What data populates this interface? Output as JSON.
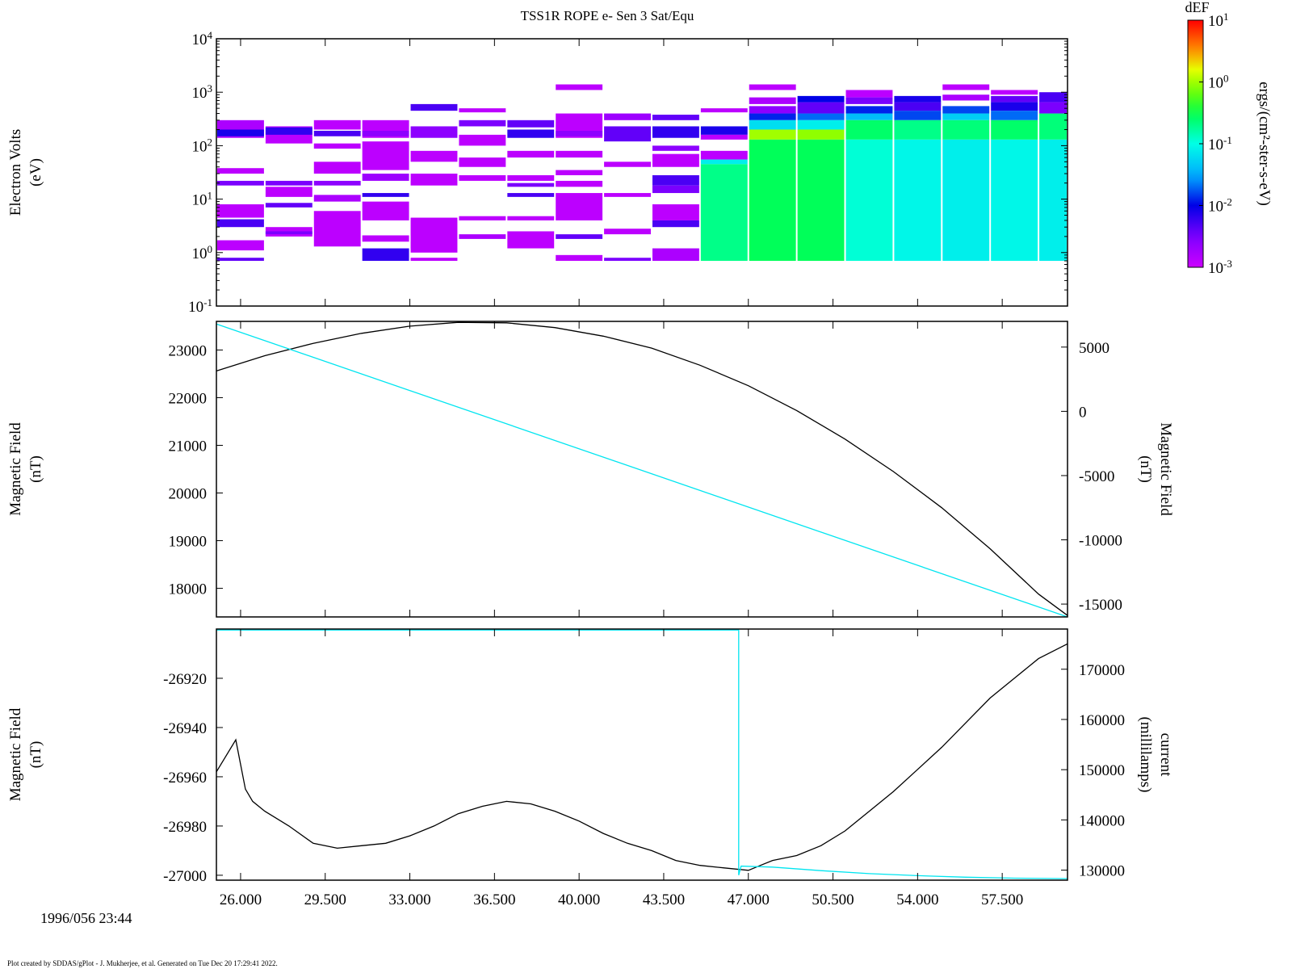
{
  "title": "TSS1R ROPE e- Sen 3 Sat/Equ",
  "start_label": "1996/056 23:44",
  "footer": "Plot created by SDDAS/gPlot - J. Mukherjee, et al.  Generated on Tue Dec 20 17:29:41 2022.",
  "colors": {
    "cyan": "#00e5f0",
    "black": "#000000"
  },
  "colorbar": {
    "title": "dEF",
    "label": "ergs/(cm²-ster-s-eV)",
    "ticks": [
      {
        "base": "10",
        "exp": "1"
      },
      {
        "base": "10",
        "exp": "0"
      },
      {
        "base": "10",
        "exp": "-1"
      },
      {
        "base": "10",
        "exp": "-2"
      },
      {
        "base": "10",
        "exp": "-3"
      }
    ],
    "log_range": [
      -3,
      1
    ]
  },
  "chart_data": [
    {
      "type": "heatmap",
      "ylabel": [
        "Electron Volts",
        "(eV)"
      ],
      "y_scale": "log",
      "ylim": [
        0.1,
        10000
      ],
      "ytick_labels": [
        {
          "base": "10",
          "exp": "4"
        },
        {
          "base": "10",
          "exp": "3"
        },
        {
          "base": "10",
          "exp": "2"
        },
        {
          "base": "10",
          "exp": "1"
        },
        {
          "base": "10",
          "exp": "0"
        },
        {
          "base": "10",
          "exp": "-1"
        }
      ],
      "xlim": [
        25.0,
        60.2
      ],
      "columns": [
        {
          "t0": 25.0,
          "t1": 27.0,
          "bands": [
            [
              140,
              300,
              -2.8
            ],
            [
              150,
              200,
              -2.1
            ],
            [
              30,
              38,
              -2.9
            ],
            [
              18,
              22,
              -2.5
            ],
            [
              4.5,
              8,
              -2.9
            ],
            [
              3,
              4.2,
              -2.3
            ],
            [
              1.1,
              1.7,
              -2.9
            ],
            [
              0.7,
              0.8,
              -2.4
            ]
          ]
        },
        {
          "t0": 27.0,
          "t1": 29.0,
          "bands": [
            [
              110,
              230,
              -2.9
            ],
            [
              160,
              220,
              -2.2
            ],
            [
              18,
              22,
              -2.5
            ],
            [
              11,
              17,
              -2.9
            ],
            [
              7,
              8.5,
              -2.4
            ],
            [
              2,
              3,
              -2.9
            ],
            [
              2.2,
              2.5,
              -2.5
            ]
          ]
        },
        {
          "t0": 29.0,
          "t1": 31.0,
          "bands": [
            [
              200,
              300,
              -2.9
            ],
            [
              150,
              190,
              -2.3
            ],
            [
              88,
              110,
              -2.9
            ],
            [
              30,
              50,
              -2.9
            ],
            [
              18,
              22,
              -2.6
            ],
            [
              9,
              12,
              -2.8
            ],
            [
              1.3,
              6,
              -2.9
            ]
          ]
        },
        {
          "t0": 31.0,
          "t1": 33.0,
          "bands": [
            [
              140,
              300,
              -2.9
            ],
            [
              150,
              190,
              -2.6
            ],
            [
              35,
              120,
              -2.9
            ],
            [
              22,
              30,
              -2.7
            ],
            [
              11,
              13,
              -2.2
            ],
            [
              4,
              9,
              -2.9
            ],
            [
              1.6,
              2.1,
              -2.9
            ],
            [
              0.7,
              1.2,
              -2.2
            ]
          ]
        },
        {
          "t0": 33.0,
          "t1": 35.0,
          "bands": [
            [
              450,
              600,
              -2.3
            ],
            [
              140,
              230,
              -2.6
            ],
            [
              50,
              80,
              -2.9
            ],
            [
              18,
              30,
              -2.9
            ],
            [
              1,
              4.5,
              -2.9
            ],
            [
              0.7,
              0.8,
              -2.9
            ]
          ]
        },
        {
          "t0": 35.0,
          "t1": 37.0,
          "bands": [
            [
              420,
              500,
              -2.9
            ],
            [
              230,
              300,
              -2.5
            ],
            [
              100,
              160,
              -2.9
            ],
            [
              40,
              60,
              -2.9
            ],
            [
              22,
              28,
              -2.9
            ],
            [
              4,
              4.8,
              -2.9
            ],
            [
              1.8,
              2.2,
              -2.8
            ]
          ]
        },
        {
          "t0": 37.0,
          "t1": 39.0,
          "bands": [
            [
              220,
              300,
              -2.4
            ],
            [
              140,
              200,
              -2.2
            ],
            [
              60,
              80,
              -2.9
            ],
            [
              22,
              28,
              -2.9
            ],
            [
              17,
              20,
              -2.5
            ],
            [
              11,
              13,
              -2.3
            ],
            [
              4,
              4.8,
              -2.9
            ],
            [
              1.2,
              2.5,
              -2.9
            ]
          ]
        },
        {
          "t0": 39.0,
          "t1": 41.0,
          "bands": [
            [
              1100,
              1400,
              -2.9
            ],
            [
              140,
              400,
              -2.9
            ],
            [
              150,
              190,
              -2.6
            ],
            [
              60,
              80,
              -2.9
            ],
            [
              28,
              35,
              -2.9
            ],
            [
              17,
              22,
              -2.9
            ],
            [
              4,
              13,
              -2.9
            ],
            [
              1.8,
              2.2,
              -2.4
            ],
            [
              0.7,
              0.9,
              -2.9
            ]
          ]
        },
        {
          "t0": 41.0,
          "t1": 43.0,
          "bands": [
            [
              300,
              400,
              -2.7
            ],
            [
              120,
              230,
              -2.4
            ],
            [
              40,
              50,
              -2.9
            ],
            [
              11,
              13,
              -2.9
            ],
            [
              2.2,
              2.8,
              -2.9
            ],
            [
              0.7,
              0.8,
              -2.5
            ]
          ]
        },
        {
          "t0": 43.0,
          "t1": 45.0,
          "bands": [
            [
              300,
              380,
              -2.4
            ],
            [
              140,
              230,
              -2.2
            ],
            [
              80,
              100,
              -2.6
            ],
            [
              40,
              70,
              -2.9
            ],
            [
              18,
              28,
              -2.3
            ],
            [
              13,
              18,
              -2.5
            ],
            [
              4,
              8,
              -2.9
            ],
            [
              3,
              4,
              -2.3
            ],
            [
              0.7,
              1.2,
              -2.8
            ]
          ]
        },
        {
          "t0": 45.0,
          "t1": 47.0,
          "bands": [
            [
              420,
              500,
              -2.9
            ],
            [
              160,
              230,
              -2.1
            ],
            [
              130,
              160,
              -2.9
            ],
            [
              55,
              80,
              -2.9
            ],
            [
              45,
              55,
              -1.1
            ],
            [
              0.7,
              45,
              -0.7
            ]
          ]
        },
        {
          "t0": 47.0,
          "t1": 49.0,
          "bands": [
            [
              1100,
              1400,
              -2.9
            ],
            [
              600,
              800,
              -2.8
            ],
            [
              400,
              550,
              -2.6
            ],
            [
              300,
              400,
              -1.9
            ],
            [
              200,
              300,
              -1.2
            ],
            [
              130,
              200,
              0.0
            ],
            [
              0.7,
              130,
              -0.55
            ]
          ]
        },
        {
          "t0": 49.0,
          "t1": 51.0,
          "bands": [
            [
              650,
              850,
              -2.0
            ],
            [
              400,
              650,
              -2.4
            ],
            [
              300,
              400,
              -1.7
            ],
            [
              200,
              300,
              -1.1
            ],
            [
              130,
              200,
              -0.05
            ],
            [
              0.7,
              130,
              -0.55
            ]
          ]
        },
        {
          "t0": 51.0,
          "t1": 53.0,
          "bands": [
            [
              800,
              1100,
              -2.9
            ],
            [
              600,
              800,
              -2.5
            ],
            [
              400,
              550,
              -1.9
            ],
            [
              300,
              400,
              -1.4
            ],
            [
              130,
              300,
              -0.6
            ],
            [
              0.7,
              130,
              -0.95
            ]
          ]
        },
        {
          "t0": 53.0,
          "t1": 55.0,
          "bands": [
            [
              650,
              850,
              -2.1
            ],
            [
              450,
              650,
              -2.3
            ],
            [
              300,
              450,
              -1.8
            ],
            [
              130,
              300,
              -0.7
            ],
            [
              0.7,
              130,
              -1.05
            ]
          ]
        },
        {
          "t0": 55.0,
          "t1": 57.0,
          "bands": [
            [
              1100,
              1400,
              -2.9
            ],
            [
              700,
              900,
              -2.8
            ],
            [
              400,
              550,
              -1.8
            ],
            [
              300,
              400,
              -1.3
            ],
            [
              130,
              300,
              -0.65
            ],
            [
              0.7,
              130,
              -1.1
            ]
          ]
        },
        {
          "t0": 57.0,
          "t1": 59.0,
          "bands": [
            [
              900,
              1100,
              -2.9
            ],
            [
              650,
              850,
              -2.4
            ],
            [
              450,
              650,
              -2.1
            ],
            [
              300,
              450,
              -1.7
            ],
            [
              130,
              300,
              -0.6
            ],
            [
              0.7,
              130,
              -1.05
            ]
          ]
        },
        {
          "t0": 59.0,
          "t1": 60.2,
          "bands": [
            [
              650,
              1000,
              -2.3
            ],
            [
              400,
              650,
              -2.5
            ],
            [
              130,
              400,
              -0.65
            ],
            [
              0.7,
              130,
              -1.1
            ]
          ]
        }
      ]
    },
    {
      "type": "line",
      "ylabel": [
        "Magnetic Field",
        "(nT)"
      ],
      "ylabel_right": [
        "Magnetic Field",
        "(nT)"
      ],
      "ylim": [
        17400,
        23600
      ],
      "yticks": [
        18000,
        19000,
        20000,
        21000,
        22000,
        23000
      ],
      "ylim_right": [
        -16000,
        7000
      ],
      "yticks_right": [
        -15000,
        -10000,
        -5000,
        0,
        5000
      ],
      "xlim": [
        25.0,
        60.2
      ],
      "series": [
        {
          "axis": "left",
          "color": "#000000",
          "x": [
            25.0,
            27.0,
            29.0,
            31.0,
            33.0,
            35.0,
            37.0,
            39.0,
            41.0,
            43.0,
            45.0,
            47.0,
            49.0,
            51.0,
            53.0,
            55.0,
            57.0,
            59.0,
            60.2
          ],
          "y": [
            22560,
            22880,
            23140,
            23350,
            23500,
            23580,
            23570,
            23470,
            23290,
            23040,
            22680,
            22250,
            21730,
            21130,
            20450,
            19690,
            18830,
            17880,
            17430
          ]
        },
        {
          "axis": "right",
          "color": "#00e5f0",
          "x": [
            25.0,
            60.2
          ],
          "y": [
            6800,
            -16000
          ]
        }
      ]
    },
    {
      "type": "line",
      "ylabel": [
        "Magnetic Field",
        "(nT)"
      ],
      "ylabel_right": [
        "current",
        "(millilamps)"
      ],
      "ylim": [
        -27002,
        -26900
      ],
      "yticks": [
        -27000,
        -26980,
        -26960,
        -26940,
        -26920
      ],
      "ylim_right": [
        128000,
        178000
      ],
      "yticks_right": [
        130000,
        140000,
        150000,
        160000,
        170000
      ],
      "xlim": [
        25.0,
        60.2
      ],
      "xtick_labels": [
        "26.000",
        "29.500",
        "33.000",
        "36.500",
        "40.000",
        "43.500",
        "47.000",
        "50.500",
        "54.000",
        "57.500"
      ],
      "xticks": [
        26.0,
        29.5,
        33.0,
        36.5,
        40.0,
        43.5,
        47.0,
        50.5,
        54.0,
        57.5
      ],
      "series": [
        {
          "axis": "left",
          "color": "#000000",
          "x": [
            25.0,
            25.8,
            26.2,
            26.5,
            27.0,
            28.0,
            29.0,
            30.0,
            31.0,
            32.0,
            33.0,
            34.0,
            35.0,
            36.0,
            37.0,
            38.0,
            39.0,
            40.0,
            41.0,
            42.0,
            43.0,
            44.0,
            45.0,
            46.0,
            47.0,
            47.5,
            48.0,
            49.0,
            50.0,
            51.0,
            52.0,
            53.0,
            54.0,
            55.0,
            56.0,
            57.0,
            58.0,
            59.0,
            60.2
          ],
          "y": [
            -26958,
            -26945,
            -26965,
            -26970,
            -26974,
            -26980,
            -26987,
            -26989,
            -26988,
            -26987,
            -26984,
            -26980,
            -26975,
            -26972,
            -26970,
            -26971,
            -26974,
            -26978,
            -26983,
            -26987,
            -26990,
            -26994,
            -26996,
            -26997,
            -26998,
            -26996,
            -26994,
            -26992,
            -26988,
            -26982,
            -26974,
            -26966,
            -26957,
            -26948,
            -26938,
            -26928,
            -26920,
            -26912,
            -26906
          ]
        },
        {
          "axis": "right",
          "color": "#00e5f0",
          "x": [
            25.0,
            46.6,
            46.6,
            46.7,
            48.0,
            50.0,
            52.0,
            54.0,
            56.0,
            58.0,
            60.2
          ],
          "y": [
            177800,
            177800,
            129000,
            130800,
            130600,
            129900,
            129300,
            128900,
            128600,
            128400,
            128300
          ]
        }
      ]
    }
  ]
}
